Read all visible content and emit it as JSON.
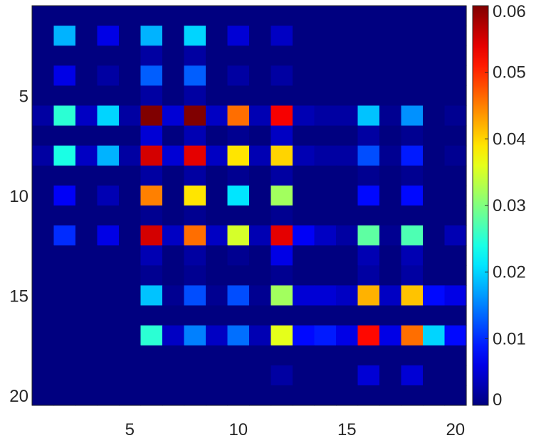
{
  "chart_data": {
    "type": "heatmap",
    "title": "",
    "xlabel": "",
    "ylabel": "",
    "colormap": "jet",
    "clim": [
      0,
      0.06
    ],
    "x_ticks": [
      "5",
      "10",
      "15",
      "20"
    ],
    "y_ticks": [
      "5",
      "10",
      "15",
      "20"
    ],
    "colorbar_ticks": [
      "0",
      "0.01",
      "0.02",
      "0.03",
      "0.04",
      "0.05",
      "0.06"
    ],
    "grid": false,
    "legend": "none",
    "rows": 20,
    "cols": 20,
    "values": [
      [
        0,
        0,
        0,
        0,
        0,
        0,
        0,
        0,
        0,
        0,
        0,
        0,
        0,
        0,
        0,
        0,
        0,
        0,
        0,
        0
      ],
      [
        0,
        0.018,
        0,
        0.006,
        0,
        0.018,
        0,
        0.02,
        0,
        0.005,
        0,
        0.004,
        0,
        0,
        0,
        0,
        0,
        0,
        0,
        0
      ],
      [
        0,
        0,
        0,
        0,
        0,
        0.002,
        0,
        0.002,
        0,
        0,
        0,
        0,
        0,
        0,
        0,
        0,
        0,
        0,
        0,
        0
      ],
      [
        0,
        0.006,
        0,
        0.002,
        0,
        0.013,
        0,
        0.013,
        0,
        0.002,
        0,
        0.002,
        0,
        0,
        0,
        0,
        0,
        0,
        0,
        0
      ],
      [
        0,
        0,
        0,
        0,
        0,
        0.002,
        0,
        0.002,
        0,
        0,
        0,
        0,
        0,
        0,
        0,
        0,
        0,
        0,
        0,
        0
      ],
      [
        0.002,
        0.025,
        0.004,
        0.02,
        0.002,
        0.061,
        0.005,
        0.06,
        0.004,
        0.046,
        0.003,
        0.053,
        0.003,
        0.002,
        0.002,
        0.019,
        0.001,
        0.016,
        0,
        0.001
      ],
      [
        0,
        0,
        0,
        0,
        0,
        0.005,
        0,
        0.003,
        0,
        0.001,
        0,
        0.004,
        0,
        0,
        0,
        0.002,
        0,
        0.001,
        0,
        0
      ],
      [
        0.002,
        0.024,
        0.004,
        0.018,
        0.002,
        0.055,
        0.005,
        0.054,
        0.004,
        0.039,
        0.003,
        0.04,
        0.003,
        0.002,
        0.002,
        0.012,
        0.001,
        0.009,
        0,
        0.001
      ],
      [
        0,
        0,
        0,
        0,
        0,
        0.002,
        0,
        0.002,
        0,
        0.001,
        0,
        0.002,
        0,
        0,
        0,
        0.001,
        0,
        0.001,
        0,
        0
      ],
      [
        0,
        0.007,
        0,
        0.003,
        0,
        0.045,
        0,
        0.039,
        0,
        0.021,
        0,
        0.032,
        0,
        0,
        0,
        0.008,
        0,
        0.008,
        0,
        0
      ],
      [
        0,
        0,
        0,
        0,
        0,
        0.001,
        0,
        0.001,
        0,
        0,
        0,
        0.001,
        0,
        0,
        0,
        0,
        0,
        0,
        0,
        0
      ],
      [
        0,
        0.01,
        0,
        0.006,
        0,
        0.055,
        0.004,
        0.046,
        0.004,
        0.035,
        0.003,
        0.054,
        0.007,
        0.004,
        0.002,
        0.028,
        0.001,
        0.027,
        0,
        0.003
      ],
      [
        0,
        0,
        0,
        0,
        0,
        0.003,
        0,
        0.002,
        0,
        0.001,
        0,
        0.006,
        0,
        0,
        0,
        0.003,
        0,
        0.003,
        0,
        0
      ],
      [
        0,
        0,
        0,
        0,
        0,
        0.001,
        0,
        0.001,
        0,
        0,
        0,
        0.001,
        0,
        0,
        0,
        0.002,
        0,
        0.002,
        0,
        0
      ],
      [
        0,
        0,
        0,
        0,
        0,
        0.019,
        0.001,
        0.012,
        0.001,
        0.012,
        0.001,
        0.032,
        0.005,
        0.005,
        0.004,
        0.042,
        0.004,
        0.041,
        0.008,
        0.006
      ],
      [
        0,
        0,
        0,
        0,
        0,
        0,
        0,
        0,
        0,
        0,
        0,
        0,
        0,
        0,
        0,
        0,
        0,
        0,
        0,
        0
      ],
      [
        0,
        0,
        0,
        0,
        0,
        0.025,
        0.004,
        0.015,
        0.004,
        0.014,
        0.003,
        0.036,
        0.008,
        0.009,
        0.006,
        0.052,
        0.006,
        0.046,
        0.02,
        0.008
      ],
      [
        0,
        0,
        0,
        0,
        0,
        0,
        0,
        0,
        0,
        0,
        0,
        0,
        0,
        0,
        0,
        0,
        0,
        0,
        0,
        0
      ],
      [
        0,
        0,
        0,
        0,
        0,
        0,
        0,
        0,
        0,
        0,
        0,
        0.002,
        0,
        0,
        0,
        0.005,
        0,
        0.005,
        0,
        0
      ],
      [
        0,
        0,
        0,
        0,
        0,
        0,
        0,
        0,
        0,
        0,
        0,
        0,
        0,
        0,
        0,
        0,
        0,
        0,
        0,
        0
      ]
    ]
  }
}
